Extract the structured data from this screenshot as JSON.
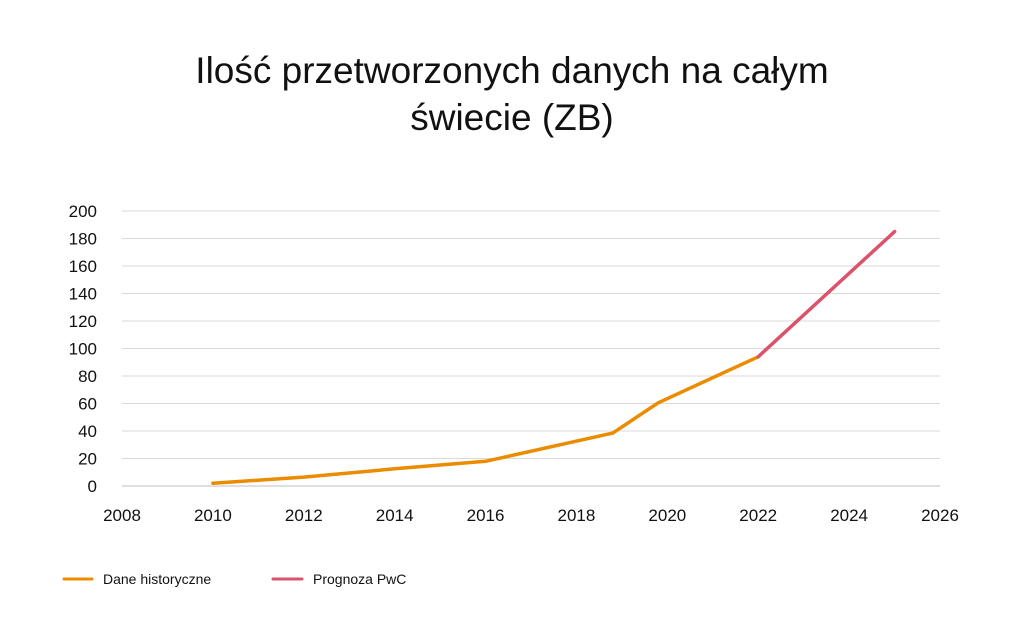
{
  "chart_data": {
    "type": "line",
    "title": [
      "Ilość przetworzonych danych na całym",
      "świecie (ZB)"
    ],
    "xlabel": "",
    "ylabel": "",
    "xlim": [
      2008,
      2026
    ],
    "ylim": [
      0,
      200
    ],
    "x_ticks": [
      2008,
      2010,
      2012,
      2014,
      2016,
      2018,
      2020,
      2022,
      2024,
      2026
    ],
    "y_ticks": [
      0,
      20,
      40,
      60,
      80,
      100,
      120,
      140,
      160,
      180,
      200
    ],
    "grid": true,
    "legend_position": "bottom-left",
    "series": [
      {
        "name": "Dane historyczne",
        "color": "#EB8C00",
        "x": [
          2010,
          2012,
          2014,
          2016,
          2018.8,
          2019.8,
          2022
        ],
        "y": [
          2,
          6.5,
          12.5,
          18,
          38.5,
          60.5,
          94
        ]
      },
      {
        "name": "Prognoza PwC",
        "color": "#DB536A",
        "x": [
          2022,
          2025
        ],
        "y": [
          94,
          185
        ]
      }
    ]
  }
}
